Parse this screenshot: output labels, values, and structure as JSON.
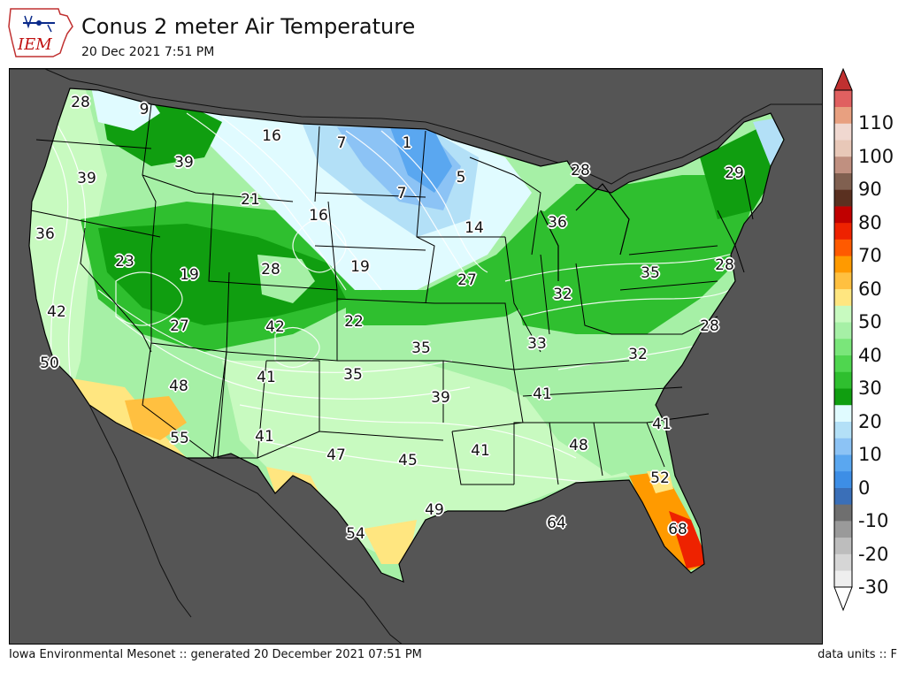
{
  "header": {
    "logo_text": "IEM",
    "title": "Conus 2 meter Air Temperature",
    "subtitle": "20 Dec 2021 7:51 PM"
  },
  "footer": {
    "left": "Iowa Environmental Mesonet :: generated 20 December 2021 07:51 PM",
    "right": "data units :: F"
  },
  "colors": {
    "land_background": "#555555",
    "ocean_background": "#555555",
    "contour_line": "#ffffff",
    "boundary_line": "#000000"
  },
  "colorbar": {
    "ticks": [
      "110",
      "100",
      "90",
      "80",
      "70",
      "60",
      "50",
      "40",
      "30",
      "20",
      "10",
      "0",
      "-10",
      "-20",
      "-30"
    ],
    "min": -30,
    "max": 120,
    "bins": [
      {
        "from": -30,
        "to": -25,
        "color": "#eeeeee"
      },
      {
        "from": -25,
        "to": -20,
        "color": "#d6d6d6"
      },
      {
        "from": -20,
        "to": -15,
        "color": "#bdbdbd"
      },
      {
        "from": -15,
        "to": -10,
        "color": "#9a9a9a"
      },
      {
        "from": -10,
        "to": -5,
        "color": "#6f6f6f"
      },
      {
        "from": -5,
        "to": 0,
        "color": "#3a6fb8"
      },
      {
        "from": 0,
        "to": 5,
        "color": "#3d8ee6"
      },
      {
        "from": 5,
        "to": 10,
        "color": "#5aa7f0"
      },
      {
        "from": 10,
        "to": 15,
        "color": "#8cc3f5"
      },
      {
        "from": 15,
        "to": 20,
        "color": "#b3e0f7"
      },
      {
        "from": 20,
        "to": 25,
        "color": "#e0fbff"
      },
      {
        "from": 25,
        "to": 30,
        "color": "#109e10"
      },
      {
        "from": 30,
        "to": 35,
        "color": "#2fbf2f"
      },
      {
        "from": 35,
        "to": 40,
        "color": "#4fd64f"
      },
      {
        "from": 40,
        "to": 45,
        "color": "#7ae67a"
      },
      {
        "from": 45,
        "to": 50,
        "color": "#a6f0a6"
      },
      {
        "from": 50,
        "to": 55,
        "color": "#c8fac0"
      },
      {
        "from": 55,
        "to": 60,
        "color": "#ffe680"
      },
      {
        "from": 60,
        "to": 65,
        "color": "#ffc040"
      },
      {
        "from": 65,
        "to": 70,
        "color": "#ff9a00"
      },
      {
        "from": 70,
        "to": 75,
        "color": "#ff5a00"
      },
      {
        "from": 75,
        "to": 80,
        "color": "#ee2200"
      },
      {
        "from": 80,
        "to": 85,
        "color": "#c00000"
      },
      {
        "from": 85,
        "to": 90,
        "color": "#5a3020"
      },
      {
        "from": 90,
        "to": 95,
        "color": "#806050"
      },
      {
        "from": 95,
        "to": 100,
        "color": "#c09080"
      },
      {
        "from": 100,
        "to": 105,
        "color": "#e8c8b8"
      },
      {
        "from": 105,
        "to": 110,
        "color": "#f0d8d0"
      },
      {
        "from": 110,
        "to": 115,
        "color": "#e8a080"
      },
      {
        "from": 115,
        "to": 120,
        "color": "#e06060"
      }
    ],
    "over_color": "#c03030",
    "under_color": "#ffffff"
  },
  "stations": [
    {
      "label": "28",
      "value": 28
    },
    {
      "label": "9",
      "value": 9
    },
    {
      "label": "16",
      "value": 16
    },
    {
      "label": "7",
      "value": 7
    },
    {
      "label": "1",
      "value": 1
    },
    {
      "label": "28",
      "value": 28
    },
    {
      "label": "29",
      "value": 29
    },
    {
      "label": "39",
      "value": 39
    },
    {
      "label": "39",
      "value": 39
    },
    {
      "label": "5",
      "value": 5
    },
    {
      "label": "7",
      "value": 7
    },
    {
      "label": "21",
      "value": 21
    },
    {
      "label": "16",
      "value": 16
    },
    {
      "label": "36",
      "value": 36
    },
    {
      "label": "14",
      "value": 14
    },
    {
      "label": "36",
      "value": 36
    },
    {
      "label": "23",
      "value": 23
    },
    {
      "label": "19",
      "value": 19
    },
    {
      "label": "28",
      "value": 28
    },
    {
      "label": "19",
      "value": 19
    },
    {
      "label": "27",
      "value": 27
    },
    {
      "label": "35",
      "value": 35
    },
    {
      "label": "28",
      "value": 28
    },
    {
      "label": "42",
      "value": 42
    },
    {
      "label": "32",
      "value": 32
    },
    {
      "label": "27",
      "value": 27
    },
    {
      "label": "42",
      "value": 42
    },
    {
      "label": "22",
      "value": 22
    },
    {
      "label": "28",
      "value": 28
    },
    {
      "label": "35",
      "value": 35
    },
    {
      "label": "33",
      "value": 33
    },
    {
      "label": "50",
      "value": 50
    },
    {
      "label": "32",
      "value": 32
    },
    {
      "label": "41",
      "value": 41
    },
    {
      "label": "35",
      "value": 35
    },
    {
      "label": "48",
      "value": 48
    },
    {
      "label": "39",
      "value": 39
    },
    {
      "label": "41",
      "value": 41
    },
    {
      "label": "41",
      "value": 41
    },
    {
      "label": "55",
      "value": 55
    },
    {
      "label": "41",
      "value": 41
    },
    {
      "label": "47",
      "value": 47
    },
    {
      "label": "45",
      "value": 45
    },
    {
      "label": "41",
      "value": 41
    },
    {
      "label": "48",
      "value": 48
    },
    {
      "label": "52",
      "value": 52
    },
    {
      "label": "49",
      "value": 49
    },
    {
      "label": "54",
      "value": 54
    },
    {
      "label": "64",
      "value": 64
    },
    {
      "label": "68",
      "value": 68
    }
  ]
}
